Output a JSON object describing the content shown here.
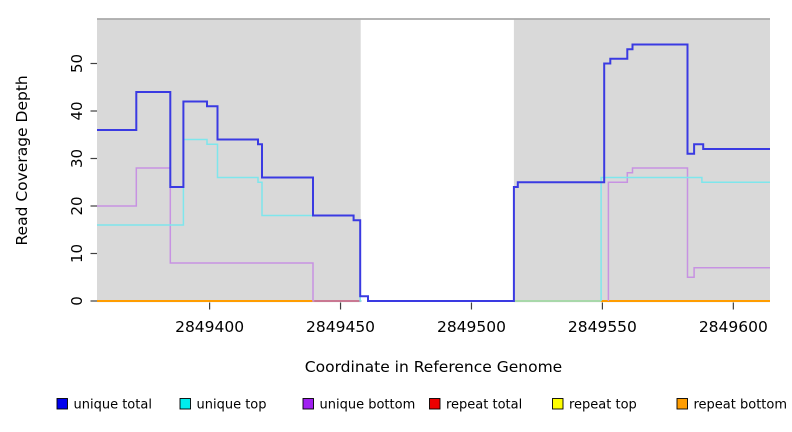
{
  "figure": {
    "xlabel": "Coordinate in Reference Genome",
    "ylabel": "Read Coverage Depth"
  },
  "legend": {
    "items": [
      {
        "label": "unique total",
        "swatch_color": "#0000ee"
      },
      {
        "label": "unique top",
        "swatch_color": "#00eeee"
      },
      {
        "label": "unique bottom",
        "swatch_color": "#a020f0"
      },
      {
        "label": "repeat total",
        "swatch_color": "#ee0000"
      },
      {
        "label": "repeat top",
        "swatch_color": "#ffff00"
      },
      {
        "label": "repeat bottom",
        "swatch_color": "#ff9d00"
      }
    ]
  },
  "chart_data": {
    "type": "line",
    "title": "",
    "xlabel": "Coordinate in Reference Genome",
    "ylabel": "Read Coverage Depth",
    "xlim": [
      2849357,
      2849614
    ],
    "ylim": [
      0,
      59
    ],
    "x_ticks": [
      2849400,
      2849450,
      2849500,
      2849550,
      2849600
    ],
    "y_ticks": [
      0,
      10,
      20,
      30,
      40,
      50
    ],
    "grid": false,
    "legend_position": "bottom",
    "plot_bg": "#ffffff",
    "covered_region_fill": "#d9d9d9",
    "covered_regions": [
      {
        "from": 2849357,
        "to": 2849457.7
      },
      {
        "from": 2849516.2,
        "to": 2849614
      }
    ],
    "uncovered_gap": {
      "from": 2849457.7,
      "to": 2849516.2
    },
    "top_border_color": "#9b9b9b",
    "series": [
      {
        "name": "unique total",
        "line_color": "#3a3ae2",
        "line_width": 2.0,
        "segments": [
          [
            [
              2849357,
              36
            ],
            [
              2849372,
              44
            ],
            [
              2849385,
              24
            ],
            [
              2849390,
              42
            ],
            [
              2849399,
              41
            ],
            [
              2849403,
              34
            ],
            [
              2849418.5,
              33
            ],
            [
              2849420,
              26
            ],
            [
              2849439.5,
              18
            ],
            [
              2849455,
              17
            ],
            [
              2849457.5,
              1
            ],
            [
              2849460.5,
              0
            ],
            [
              2849516.2,
              24
            ],
            [
              2849517.7,
              25
            ],
            [
              2849550.7,
              50
            ],
            [
              2849553,
              51
            ],
            [
              2849559.5,
              53
            ],
            [
              2849561.5,
              54
            ],
            [
              2849582.5,
              31
            ],
            [
              2849585,
              33
            ],
            [
              2849588.5,
              32
            ],
            [
              2849614,
              32
            ]
          ]
        ]
      },
      {
        "name": "unique top",
        "line_color": "#7ee6ec",
        "line_width": 1.5,
        "segments": [
          [
            [
              2849357,
              16
            ],
            [
              2849390,
              34
            ],
            [
              2849399,
              33
            ],
            [
              2849403,
              26
            ],
            [
              2849418.5,
              25
            ],
            [
              2849420,
              18
            ],
            [
              2849455,
              17
            ],
            [
              2849457.5,
              0
            ],
            [
              2849458,
              0
            ]
          ],
          [
            [
              2849549.5,
              0
            ],
            [
              2849549.5,
              26
            ],
            [
              2849588,
              25
            ],
            [
              2849614,
              25
            ]
          ]
        ]
      },
      {
        "name": "unique bottom",
        "line_color": "#c792e2",
        "line_width": 1.5,
        "segments": [
          [
            [
              2849357,
              20
            ],
            [
              2849372,
              28
            ],
            [
              2849385,
              8
            ],
            [
              2849439.5,
              0
            ],
            [
              2849440,
              0
            ]
          ],
          [
            [
              2849552.3,
              0
            ],
            [
              2849552.3,
              25
            ],
            [
              2849559.5,
              27
            ],
            [
              2849561.5,
              28
            ],
            [
              2849582.5,
              5
            ],
            [
              2849585,
              7
            ],
            [
              2849614,
              7
            ]
          ]
        ]
      },
      {
        "name": "repeat total",
        "line_color": "#c4587a",
        "line_width": 1.5,
        "segments": [
          [
            [
              2849439.5,
              0
            ],
            [
              2849458,
              0
            ]
          ]
        ]
      },
      {
        "name": "repeat top",
        "line_color": "#ffff00",
        "line_width": 1.5,
        "segments": []
      },
      {
        "name": "repeat bottom",
        "line_color": "#ff9d00",
        "line_width": 2.0,
        "segments": [
          [
            [
              2849357,
              0
            ],
            [
              2849440,
              0
            ]
          ],
          [
            [
              2849549.5,
              0
            ],
            [
              2849614,
              0
            ]
          ]
        ]
      }
    ],
    "extra_baseline_segments": [
      {
        "name": "pale-green-baseline",
        "from": 2849516.2,
        "to": 2849549.5,
        "value": 0,
        "color": "#97d89a",
        "line_width": 1.5
      }
    ]
  }
}
